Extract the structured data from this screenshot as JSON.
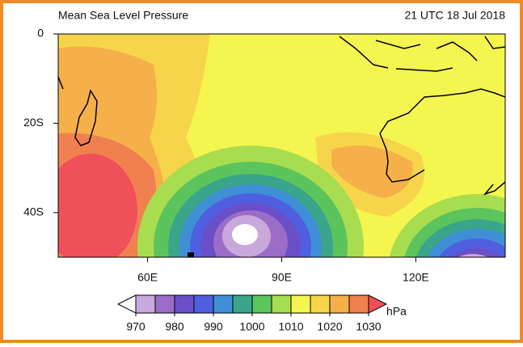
{
  "title": "Mean Sea Level Pressure",
  "time": "21 UTC 18 Jul 2018",
  "map": {
    "xlim": [
      40,
      140
    ],
    "ylim": [
      -50,
      0
    ],
    "xticks": [
      {
        "value": 60,
        "label": "60E"
      },
      {
        "value": 90,
        "label": "90E"
      },
      {
        "value": 120,
        "label": "120E"
      }
    ],
    "yticks": [
      0,
      {
        "value": -20,
        "label": "20S"
      },
      {
        "value": -40,
        "label": "40S"
      }
    ]
  },
  "colorbar": {
    "label": "hPa",
    "ticks": [
      970,
      980,
      990,
      1000,
      1010,
      1020,
      1030
    ],
    "colors": [
      "#ffffff",
      "#c9a8dc",
      "#9b6dc6",
      "#6b4fc8",
      "#4f5fe0",
      "#3f8fd6",
      "#3aa58a",
      "#5cc45c",
      "#a8dd50",
      "#f5f550",
      "#f7d54a",
      "#f6b04a",
      "#f08050",
      "#f0505a"
    ]
  }
}
